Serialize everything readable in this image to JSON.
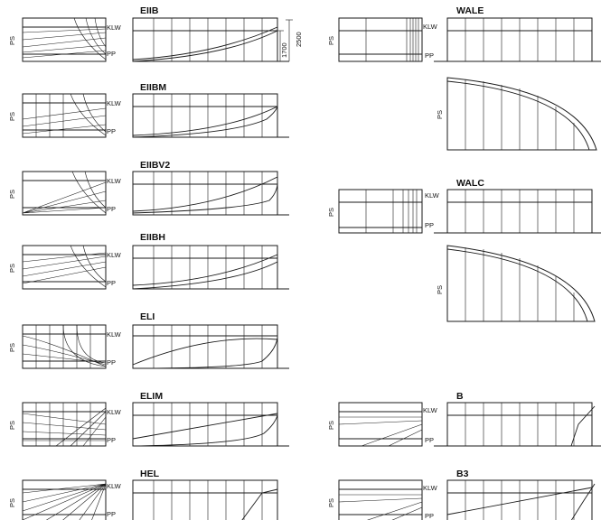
{
  "labels": {
    "ps": "PS",
    "klw": "KLW",
    "pp": "PP"
  },
  "dimensions": {
    "outer": "2500",
    "inner": "1700"
  },
  "profiles": [
    {
      "id": "EIIB",
      "title": "EIIB"
    },
    {
      "id": "EIIBM",
      "title": "EIIBM"
    },
    {
      "id": "EIIBV2",
      "title": "EIIBV2"
    },
    {
      "id": "EIIBH",
      "title": "EIIBH"
    },
    {
      "id": "ELI",
      "title": "ELI"
    },
    {
      "id": "ELIM",
      "title": "ELIM"
    },
    {
      "id": "HEL",
      "title": "HEL"
    },
    {
      "id": "WALE",
      "title": "WALE"
    },
    {
      "id": "WALC",
      "title": "WALC"
    },
    {
      "id": "B",
      "title": "B"
    },
    {
      "id": "B3",
      "title": "B3"
    }
  ]
}
